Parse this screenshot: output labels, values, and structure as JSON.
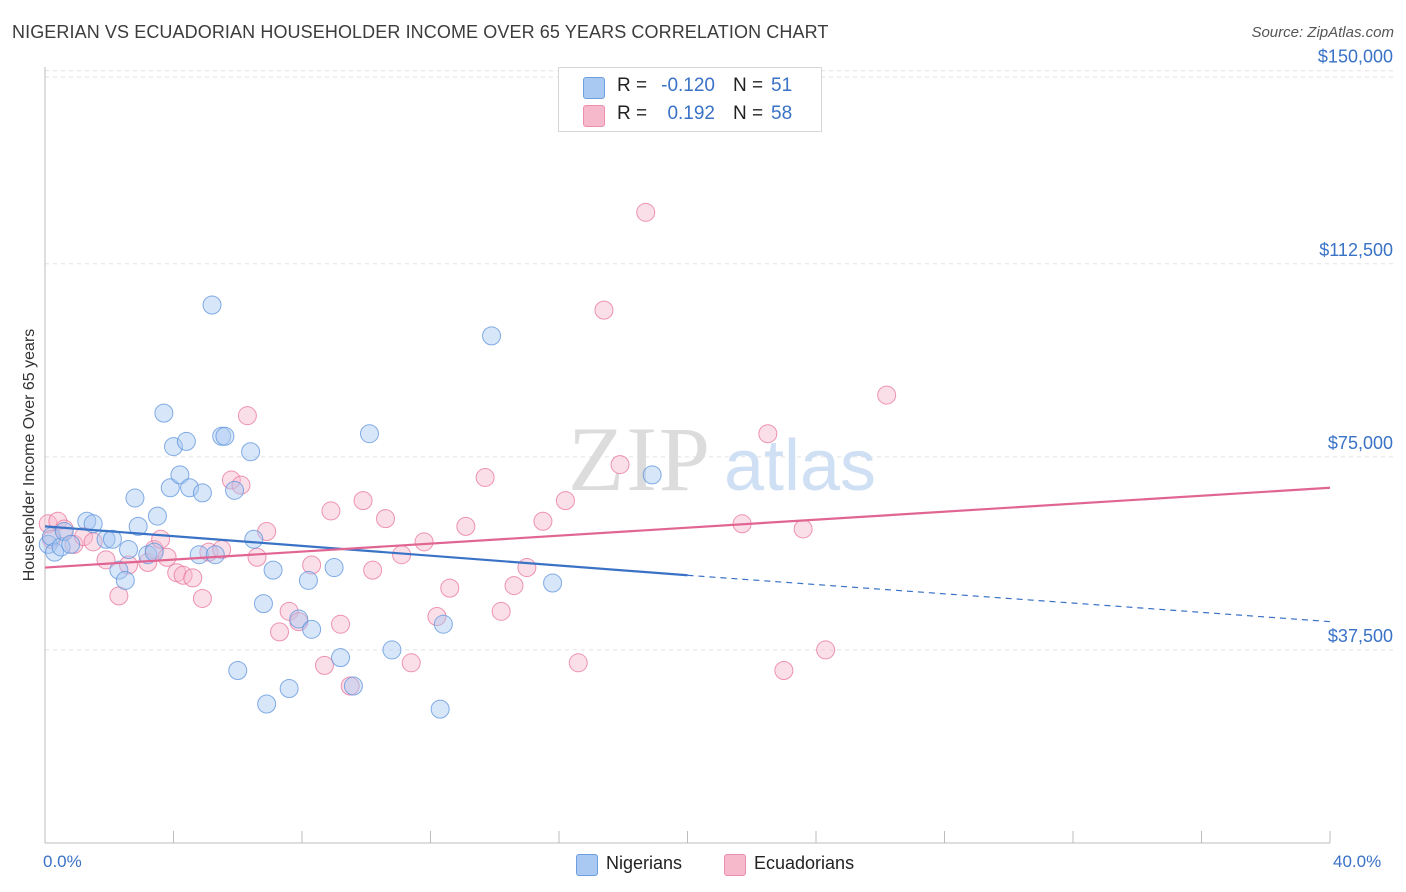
{
  "title": "NIGERIAN VS ECUADORIAN HOUSEHOLDER INCOME OVER 65 YEARS CORRELATION CHART",
  "source": "Source: ZipAtlas.com",
  "watermark": {
    "zip": "ZIP",
    "atlas": "atlas"
  },
  "legend_top": {
    "rows": [
      {
        "r_label": "R =",
        "r_value": "-0.120",
        "n_label": "N =",
        "n_value": "51",
        "color": "#a9c8f2"
      },
      {
        "r_label": "R =",
        "r_value": "0.192",
        "n_label": "N =",
        "n_value": "58",
        "color": "#f6b8cb"
      }
    ]
  },
  "legend_bottom": [
    {
      "label": "Nigerians",
      "color": "#a9c8f2"
    },
    {
      "label": "Ecuadorians",
      "color": "#f6b8cb"
    }
  ],
  "x_axis": {
    "min_label": "0.0%",
    "max_label": "40.0%"
  },
  "chart_data": {
    "type": "scatter",
    "title": "NIGERIAN VS ECUADORIAN HOUSEHOLDER INCOME OVER 65 YEARS CORRELATION CHART",
    "xlabel": "",
    "ylabel": "Householder Income Over 65 years",
    "xlim": [
      0,
      40
    ],
    "ylim": [
      0,
      155000
    ],
    "y_ticks": [
      37500,
      75000,
      112500,
      150000
    ],
    "y_tick_labels": [
      "$37,500",
      "$75,000",
      "$112,500",
      "$150,000"
    ],
    "grid": "horizontal dashed",
    "legend_placement": "top-center",
    "series": [
      {
        "name": "Nigerians",
        "color": "#5b93dc",
        "fill": "#a9c8f2",
        "points": [
          [
            0.1,
            58000
          ],
          [
            0.2,
            59500
          ],
          [
            0.3,
            56500
          ],
          [
            0.5,
            57500
          ],
          [
            0.6,
            60500
          ],
          [
            0.8,
            58000
          ],
          [
            1.3,
            62500
          ],
          [
            1.5,
            62000
          ],
          [
            1.9,
            59000
          ],
          [
            2.1,
            59000
          ],
          [
            2.3,
            53000
          ],
          [
            2.5,
            51000
          ],
          [
            2.6,
            57000
          ],
          [
            2.8,
            67000
          ],
          [
            2.9,
            61500
          ],
          [
            3.2,
            56000
          ],
          [
            3.4,
            56500
          ],
          [
            3.5,
            63500
          ],
          [
            3.7,
            83500
          ],
          [
            3.9,
            69000
          ],
          [
            4.0,
            77000
          ],
          [
            4.2,
            71500
          ],
          [
            4.4,
            78000
          ],
          [
            4.5,
            69000
          ],
          [
            4.9,
            68000
          ],
          [
            5.2,
            104500
          ],
          [
            5.5,
            79000
          ],
          [
            5.6,
            79000
          ],
          [
            5.9,
            68500
          ],
          [
            6.4,
            76000
          ],
          [
            6.5,
            59000
          ],
          [
            6.8,
            46500
          ],
          [
            7.1,
            53000
          ],
          [
            7.6,
            30000
          ],
          [
            7.9,
            43500
          ],
          [
            8.2,
            51000
          ],
          [
            8.3,
            41500
          ],
          [
            9.0,
            53500
          ],
          [
            9.2,
            36000
          ],
          [
            9.6,
            30500
          ],
          [
            10.1,
            79500
          ],
          [
            10.8,
            37500
          ],
          [
            12.3,
            26000
          ],
          [
            12.4,
            42500
          ],
          [
            13.9,
            98500
          ],
          [
            15.8,
            50500
          ],
          [
            18.9,
            71500
          ],
          [
            6.0,
            33500
          ],
          [
            4.8,
            56000
          ],
          [
            5.3,
            56000
          ],
          [
            6.9,
            27000
          ]
        ]
      },
      {
        "name": "Ecuadorians",
        "color": "#e8739a",
        "fill": "#f6b8cb",
        "points": [
          [
            0.1,
            62000
          ],
          [
            0.2,
            59000
          ],
          [
            0.4,
            62500
          ],
          [
            0.6,
            61000
          ],
          [
            0.9,
            58000
          ],
          [
            1.2,
            59500
          ],
          [
            1.5,
            58500
          ],
          [
            1.9,
            55000
          ],
          [
            2.3,
            48000
          ],
          [
            2.6,
            54000
          ],
          [
            3.2,
            54500
          ],
          [
            3.4,
            57000
          ],
          [
            3.6,
            59000
          ],
          [
            3.8,
            55500
          ],
          [
            4.1,
            52500
          ],
          [
            4.3,
            52000
          ],
          [
            4.6,
            51500
          ],
          [
            4.9,
            47500
          ],
          [
            5.1,
            56500
          ],
          [
            5.5,
            57000
          ],
          [
            5.8,
            70500
          ],
          [
            6.1,
            69500
          ],
          [
            6.3,
            83000
          ],
          [
            6.6,
            55500
          ],
          [
            6.9,
            60500
          ],
          [
            7.3,
            41000
          ],
          [
            7.6,
            45000
          ],
          [
            7.9,
            43000
          ],
          [
            8.3,
            54000
          ],
          [
            8.7,
            34500
          ],
          [
            8.9,
            64500
          ],
          [
            9.2,
            42500
          ],
          [
            9.5,
            30500
          ],
          [
            9.9,
            66500
          ],
          [
            10.2,
            53000
          ],
          [
            10.6,
            63000
          ],
          [
            11.1,
            56000
          ],
          [
            11.4,
            35000
          ],
          [
            11.8,
            58500
          ],
          [
            12.2,
            44000
          ],
          [
            12.6,
            49500
          ],
          [
            13.1,
            61500
          ],
          [
            13.7,
            71000
          ],
          [
            14.2,
            45000
          ],
          [
            14.6,
            50000
          ],
          [
            15.0,
            53500
          ],
          [
            15.5,
            62500
          ],
          [
            16.2,
            66500
          ],
          [
            16.6,
            35000
          ],
          [
            17.4,
            103500
          ],
          [
            17.9,
            73500
          ],
          [
            18.7,
            122500
          ],
          [
            21.7,
            62000
          ],
          [
            22.5,
            79500
          ],
          [
            23.0,
            33500
          ],
          [
            23.6,
            61000
          ],
          [
            24.3,
            37500
          ],
          [
            26.2,
            87000
          ]
        ]
      },
      {
        "name": "",
        "color": "#3a72c6",
        "points": [
          [
            0,
            61500
          ],
          [
            20,
            52000
          ],
          [
            40,
            43000
          ]
        ],
        "solid_until": 20
      },
      {
        "name": "",
        "color": "#e16592",
        "points": [
          [
            0,
            53500
          ],
          [
            40,
            69000
          ]
        ]
      }
    ]
  }
}
